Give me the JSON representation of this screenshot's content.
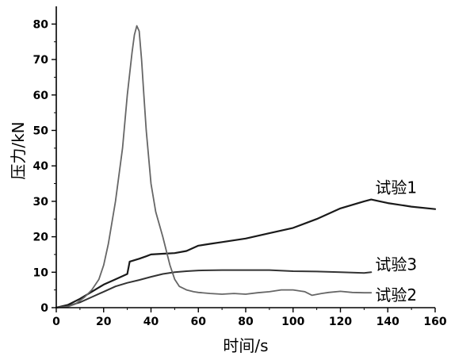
{
  "chart_data": {
    "type": "line",
    "xlabel": "时间/s",
    "ylabel": "压力/kN",
    "xlim": [
      0,
      160
    ],
    "ylim": [
      0,
      85
    ],
    "xticks": [
      0,
      20,
      40,
      60,
      80,
      100,
      120,
      140,
      160
    ],
    "yticks": [
      0,
      10,
      20,
      30,
      40,
      50,
      60,
      70,
      80
    ],
    "grid": false,
    "legend": "inline labels at right",
    "series": [
      {
        "name": "试验1",
        "color": "#1a1a1a",
        "x": [
          0,
          5,
          10,
          15,
          20,
          25,
          30,
          31,
          35,
          38,
          40,
          45,
          50,
          55,
          60,
          65,
          70,
          80,
          90,
          100,
          110,
          120,
          130,
          133,
          140,
          150,
          160
        ],
        "y": [
          0,
          0.8,
          2.5,
          4.5,
          6.5,
          8,
          9.5,
          13,
          13.8,
          14.5,
          15,
          15.2,
          15.4,
          16,
          17.5,
          18,
          18.5,
          19.5,
          21,
          22.5,
          25,
          28,
          30,
          30.5,
          29.5,
          28.5,
          27.8
        ]
      },
      {
        "name": "试验3",
        "color": "#333333",
        "x": [
          0,
          5,
          10,
          15,
          20,
          25,
          30,
          35,
          40,
          45,
          50,
          55,
          60,
          70,
          80,
          90,
          100,
          110,
          120,
          130,
          133
        ],
        "y": [
          0,
          0.5,
          1.5,
          3,
          4.5,
          6,
          7,
          7.8,
          8.7,
          9.5,
          10,
          10.3,
          10.5,
          10.6,
          10.6,
          10.6,
          10.3,
          10.2,
          10,
          9.8,
          10
        ]
      },
      {
        "name": "试验2",
        "color": "#666666",
        "x": [
          0,
          5,
          8,
          12,
          15,
          18,
          20,
          22,
          25,
          28,
          30,
          32,
          33,
          34,
          35,
          36,
          37,
          38,
          40,
          42,
          45,
          48,
          50,
          52,
          55,
          58,
          60,
          65,
          70,
          75,
          80,
          85,
          90,
          95,
          100,
          105,
          108,
          112,
          115,
          120,
          125,
          130,
          133
        ],
        "y": [
          0,
          0.3,
          1,
          3,
          5,
          8,
          12,
          18,
          30,
          45,
          60,
          72,
          77,
          79.5,
          78,
          70,
          60,
          50,
          35,
          27,
          20,
          12,
          8,
          6,
          5,
          4.5,
          4.3,
          4,
          3.8,
          4,
          3.8,
          4.2,
          4.5,
          5,
          5,
          4.5,
          3.5,
          4,
          4.3,
          4.6,
          4.3,
          4.2,
          4.2
        ]
      }
    ],
    "annotations": [
      {
        "text": "试验1",
        "series": "试验1",
        "at_x": 133,
        "at_y": 30.5
      },
      {
        "text": "试验3",
        "series": "试验3",
        "at_x": 133,
        "at_y": 10
      },
      {
        "text": "试验2",
        "series": "试验2",
        "at_x": 133,
        "at_y": 4.2
      }
    ]
  }
}
